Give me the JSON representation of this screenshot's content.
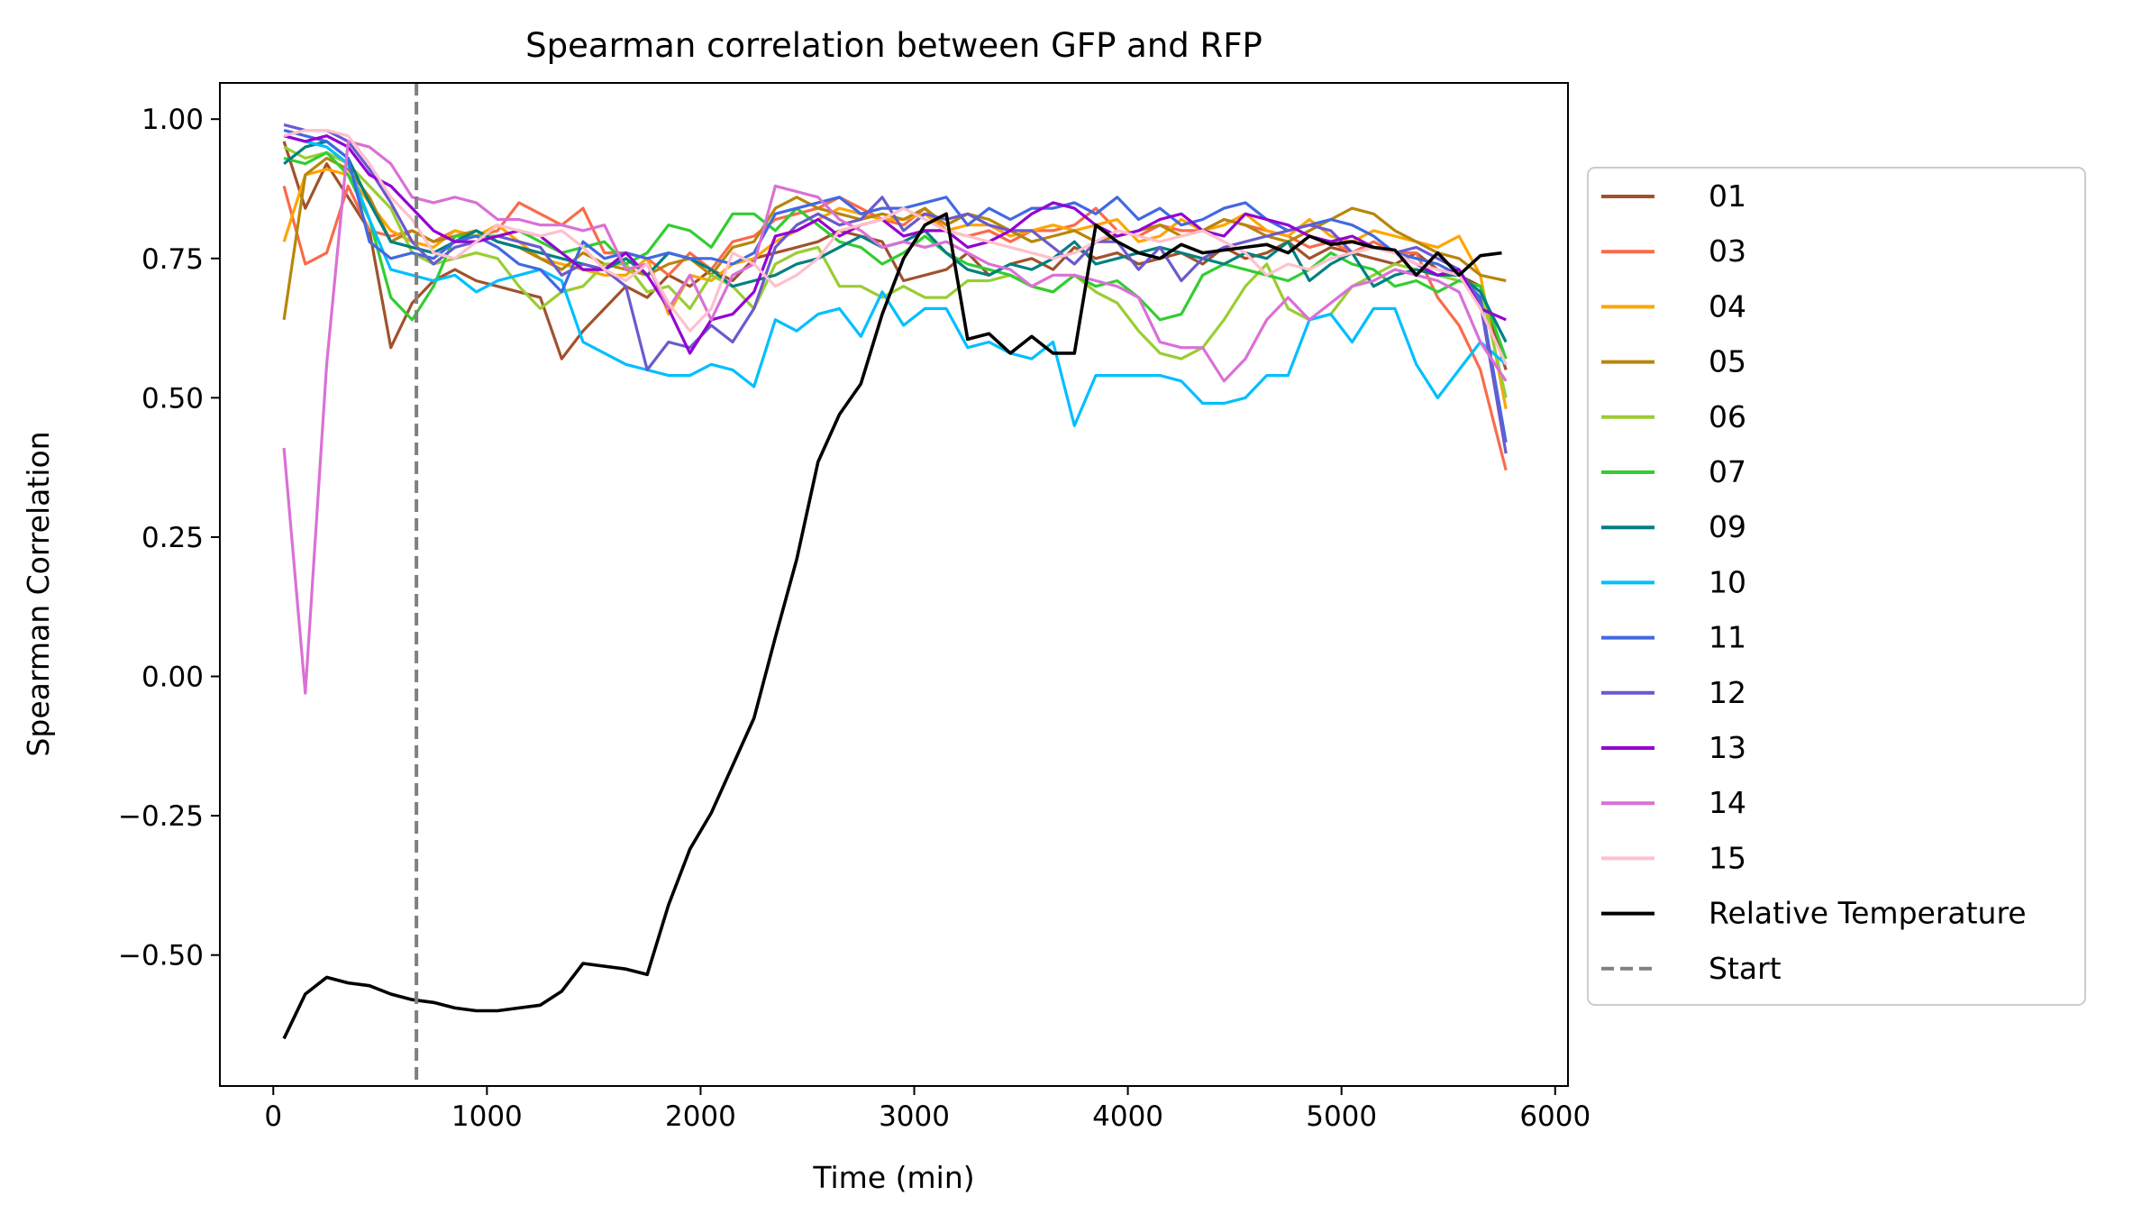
{
  "chart_data": {
    "type": "line",
    "title": "Spearman correlation between GFP and RFP",
    "xlabel": "Time (min)",
    "ylabel": "Spearman Correlation",
    "xlim": [
      -250,
      6060
    ],
    "ylim": [
      -0.735,
      1.065
    ],
    "xticks": [
      0,
      1000,
      2000,
      3000,
      4000,
      5000,
      6000
    ],
    "xtick_labels": [
      "0",
      "1000",
      "2000",
      "3000",
      "4000",
      "5000",
      "6000"
    ],
    "yticks": [
      -0.5,
      -0.25,
      0.0,
      0.25,
      0.5,
      0.75,
      1.0
    ],
    "ytick_labels": [
      "−0.50",
      "−0.25",
      "0.00",
      "0.25",
      "0.50",
      "0.75",
      "1.00"
    ],
    "grid": false,
    "legend_position": "outside-right",
    "x": [
      50,
      150,
      250,
      350,
      450,
      550,
      650,
      750,
      850,
      950,
      1050,
      1150,
      1250,
      1350,
      1450,
      1550,
      1650,
      1750,
      1850,
      1950,
      2050,
      2150,
      2250,
      2350,
      2450,
      2550,
      2650,
      2750,
      2850,
      2950,
      3050,
      3150,
      3250,
      3350,
      3450,
      3550,
      3650,
      3750,
      3850,
      3950,
      4050,
      4150,
      4250,
      4350,
      4450,
      4550,
      4650,
      4750,
      4850,
      4950,
      5050,
      5150,
      5250,
      5350,
      5450,
      5550,
      5650,
      5770
    ],
    "series": [
      {
        "name": "01",
        "color": "#a0522d",
        "values": [
          0.96,
          0.84,
          0.92,
          0.86,
          0.8,
          0.59,
          0.67,
          0.71,
          0.73,
          0.71,
          0.7,
          0.69,
          0.68,
          0.57,
          0.62,
          0.66,
          0.7,
          0.68,
          0.72,
          0.7,
          0.73,
          0.71,
          0.75,
          0.76,
          0.77,
          0.78,
          0.8,
          0.79,
          0.78,
          0.71,
          0.72,
          0.73,
          0.76,
          0.72,
          0.74,
          0.75,
          0.73,
          0.77,
          0.75,
          0.76,
          0.74,
          0.75,
          0.76,
          0.74,
          0.77,
          0.75,
          0.76,
          0.78,
          0.75,
          0.77,
          0.76,
          0.75,
          0.74,
          0.76,
          0.73,
          0.72,
          0.7,
          0.55
        ]
      },
      {
        "name": "03",
        "color": "#fa6b4a",
        "values": [
          0.88,
          0.74,
          0.76,
          0.88,
          0.8,
          0.79,
          0.8,
          0.78,
          0.8,
          0.79,
          0.8,
          0.85,
          0.83,
          0.81,
          0.84,
          0.76,
          0.76,
          0.75,
          0.72,
          0.76,
          0.73,
          0.78,
          0.79,
          0.82,
          0.83,
          0.84,
          0.86,
          0.84,
          0.82,
          0.81,
          0.84,
          0.8,
          0.79,
          0.8,
          0.78,
          0.8,
          0.8,
          0.81,
          0.84,
          0.8,
          0.79,
          0.81,
          0.8,
          0.8,
          0.82,
          0.81,
          0.8,
          0.79,
          0.77,
          0.78,
          0.76,
          0.78,
          0.76,
          0.76,
          0.68,
          0.63,
          0.55,
          0.37
        ]
      },
      {
        "name": "04",
        "color": "#ffa500",
        "values": [
          0.78,
          0.9,
          0.91,
          0.9,
          0.85,
          0.8,
          0.78,
          0.77,
          0.8,
          0.79,
          0.81,
          0.78,
          0.75,
          0.74,
          0.73,
          0.72,
          0.72,
          0.75,
          0.65,
          0.72,
          0.71,
          0.74,
          0.75,
          0.78,
          0.8,
          0.82,
          0.84,
          0.83,
          0.82,
          0.82,
          0.83,
          0.8,
          0.81,
          0.81,
          0.79,
          0.8,
          0.81,
          0.8,
          0.81,
          0.82,
          0.78,
          0.79,
          0.82,
          0.8,
          0.81,
          0.83,
          0.8,
          0.79,
          0.82,
          0.79,
          0.78,
          0.8,
          0.79,
          0.78,
          0.77,
          0.79,
          0.72,
          0.48
        ]
      },
      {
        "name": "05",
        "color": "#b8860b",
        "values": [
          0.64,
          0.9,
          0.93,
          0.91,
          0.86,
          0.78,
          0.8,
          0.78,
          0.79,
          0.8,
          0.78,
          0.77,
          0.75,
          0.73,
          0.76,
          0.74,
          0.73,
          0.72,
          0.74,
          0.75,
          0.72,
          0.77,
          0.78,
          0.84,
          0.86,
          0.84,
          0.83,
          0.82,
          0.83,
          0.82,
          0.84,
          0.81,
          0.83,
          0.82,
          0.8,
          0.78,
          0.79,
          0.8,
          0.78,
          0.79,
          0.8,
          0.81,
          0.79,
          0.8,
          0.82,
          0.81,
          0.79,
          0.78,
          0.8,
          0.82,
          0.84,
          0.83,
          0.8,
          0.78,
          0.76,
          0.75,
          0.72,
          0.71
        ]
      },
      {
        "name": "06",
        "color": "#9acd32",
        "values": [
          0.95,
          0.93,
          0.94,
          0.92,
          0.88,
          0.84,
          0.76,
          0.74,
          0.75,
          0.76,
          0.75,
          0.7,
          0.66,
          0.69,
          0.7,
          0.74,
          0.74,
          0.69,
          0.7,
          0.66,
          0.72,
          0.7,
          0.66,
          0.74,
          0.76,
          0.77,
          0.7,
          0.7,
          0.68,
          0.7,
          0.68,
          0.68,
          0.71,
          0.71,
          0.72,
          0.7,
          0.69,
          0.72,
          0.69,
          0.67,
          0.62,
          0.58,
          0.57,
          0.59,
          0.64,
          0.7,
          0.74,
          0.66,
          0.64,
          0.65,
          0.7,
          0.72,
          0.74,
          0.73,
          0.72,
          0.71,
          0.7,
          0.5
        ]
      },
      {
        "name": "07",
        "color": "#32cd32",
        "values": [
          0.93,
          0.92,
          0.94,
          0.9,
          0.82,
          0.68,
          0.64,
          0.7,
          0.79,
          0.79,
          0.79,
          0.8,
          0.78,
          0.76,
          0.77,
          0.78,
          0.74,
          0.76,
          0.81,
          0.8,
          0.77,
          0.83,
          0.83,
          0.8,
          0.84,
          0.81,
          0.78,
          0.77,
          0.74,
          0.76,
          0.79,
          0.76,
          0.74,
          0.73,
          0.72,
          0.7,
          0.69,
          0.72,
          0.7,
          0.71,
          0.68,
          0.64,
          0.65,
          0.72,
          0.74,
          0.73,
          0.72,
          0.71,
          0.73,
          0.76,
          0.74,
          0.73,
          0.7,
          0.71,
          0.69,
          0.71,
          0.7,
          0.57
        ]
      },
      {
        "name": "09",
        "color": "#008080",
        "values": [
          0.92,
          0.95,
          0.96,
          0.93,
          0.85,
          0.78,
          0.77,
          0.76,
          0.78,
          0.8,
          0.78,
          0.77,
          0.76,
          0.75,
          0.74,
          0.73,
          0.75,
          0.72,
          0.76,
          0.75,
          0.73,
          0.7,
          0.71,
          0.72,
          0.74,
          0.75,
          0.77,
          0.79,
          0.77,
          0.78,
          0.8,
          0.76,
          0.73,
          0.72,
          0.74,
          0.73,
          0.75,
          0.78,
          0.74,
          0.75,
          0.76,
          0.77,
          0.76,
          0.75,
          0.74,
          0.76,
          0.75,
          0.78,
          0.71,
          0.74,
          0.76,
          0.7,
          0.72,
          0.73,
          0.72,
          0.72,
          0.69,
          0.6
        ]
      },
      {
        "name": "10",
        "color": "#00bfff",
        "values": [
          0.97,
          0.96,
          0.95,
          0.92,
          0.82,
          0.73,
          0.72,
          0.71,
          0.72,
          0.69,
          0.71,
          0.72,
          0.73,
          0.71,
          0.6,
          0.58,
          0.56,
          0.55,
          0.54,
          0.54,
          0.56,
          0.55,
          0.52,
          0.64,
          0.62,
          0.65,
          0.66,
          0.61,
          0.69,
          0.63,
          0.66,
          0.66,
          0.59,
          0.6,
          0.58,
          0.57,
          0.6,
          0.45,
          0.54,
          0.54,
          0.54,
          0.54,
          0.53,
          0.49,
          0.49,
          0.5,
          0.54,
          0.54,
          0.64,
          0.65,
          0.6,
          0.66,
          0.66,
          0.56,
          0.5,
          0.55,
          0.6,
          0.56
        ]
      },
      {
        "name": "11",
        "color": "#4169e1",
        "values": [
          0.98,
          0.97,
          0.96,
          0.93,
          0.78,
          0.75,
          0.76,
          0.75,
          0.78,
          0.79,
          0.77,
          0.74,
          0.73,
          0.69,
          0.78,
          0.75,
          0.76,
          0.75,
          0.76,
          0.75,
          0.75,
          0.74,
          0.76,
          0.83,
          0.84,
          0.85,
          0.86,
          0.83,
          0.84,
          0.84,
          0.85,
          0.86,
          0.81,
          0.84,
          0.82,
          0.84,
          0.84,
          0.85,
          0.83,
          0.86,
          0.82,
          0.84,
          0.81,
          0.82,
          0.84,
          0.85,
          0.82,
          0.8,
          0.81,
          0.82,
          0.81,
          0.79,
          0.76,
          0.75,
          0.74,
          0.72,
          0.68,
          0.42
        ]
      },
      {
        "name": "12",
        "color": "#6a5acd",
        "values": [
          0.99,
          0.98,
          0.98,
          0.96,
          0.91,
          0.85,
          0.78,
          0.74,
          0.77,
          0.78,
          0.79,
          0.78,
          0.77,
          0.72,
          0.74,
          0.73,
          0.7,
          0.55,
          0.6,
          0.59,
          0.63,
          0.6,
          0.66,
          0.77,
          0.81,
          0.83,
          0.81,
          0.82,
          0.86,
          0.8,
          0.83,
          0.82,
          0.83,
          0.81,
          0.8,
          0.8,
          0.77,
          0.74,
          0.78,
          0.78,
          0.73,
          0.77,
          0.71,
          0.75,
          0.77,
          0.78,
          0.79,
          0.8,
          0.81,
          0.8,
          0.76,
          0.77,
          0.76,
          0.77,
          0.75,
          0.73,
          0.67,
          0.4
        ]
      },
      {
        "name": "13",
        "color": "#9400d3",
        "values": [
          0.97,
          0.96,
          0.97,
          0.95,
          0.9,
          0.88,
          0.84,
          0.8,
          0.78,
          0.78,
          0.79,
          0.8,
          0.79,
          0.76,
          0.73,
          0.73,
          0.76,
          0.72,
          0.66,
          0.58,
          0.64,
          0.65,
          0.69,
          0.79,
          0.8,
          0.82,
          0.79,
          0.81,
          0.82,
          0.79,
          0.8,
          0.8,
          0.77,
          0.78,
          0.8,
          0.83,
          0.85,
          0.84,
          0.81,
          0.79,
          0.8,
          0.82,
          0.83,
          0.8,
          0.79,
          0.83,
          0.82,
          0.81,
          0.79,
          0.78,
          0.79,
          0.77,
          0.76,
          0.74,
          0.72,
          0.73,
          0.66,
          0.64
        ]
      },
      {
        "name": "14",
        "color": "#da70d6",
        "values": [
          0.41,
          -0.03,
          0.56,
          0.96,
          0.95,
          0.92,
          0.86,
          0.85,
          0.86,
          0.85,
          0.82,
          0.82,
          0.81,
          0.81,
          0.8,
          0.81,
          0.73,
          0.74,
          0.66,
          0.72,
          0.64,
          0.72,
          0.74,
          0.88,
          0.87,
          0.86,
          0.82,
          0.8,
          0.77,
          0.78,
          0.77,
          0.78,
          0.76,
          0.74,
          0.73,
          0.7,
          0.72,
          0.72,
          0.71,
          0.7,
          0.68,
          0.6,
          0.59,
          0.59,
          0.53,
          0.57,
          0.64,
          0.68,
          0.64,
          0.67,
          0.7,
          0.71,
          0.73,
          0.72,
          0.71,
          0.69,
          0.6,
          0.53
        ]
      },
      {
        "name": "15",
        "color": "#ffc0cb",
        "values": [
          0.97,
          0.98,
          0.98,
          0.97,
          0.92,
          0.86,
          0.82,
          0.76,
          0.75,
          0.78,
          0.81,
          0.8,
          0.79,
          0.8,
          0.77,
          0.73,
          0.71,
          0.74,
          0.67,
          0.62,
          0.66,
          0.76,
          0.74,
          0.7,
          0.72,
          0.75,
          0.8,
          0.81,
          0.82,
          0.84,
          0.82,
          0.8,
          0.79,
          0.78,
          0.77,
          0.76,
          0.75,
          0.76,
          0.78,
          0.8,
          0.79,
          0.78,
          0.79,
          0.8,
          0.78,
          0.76,
          0.72,
          0.74,
          0.73,
          0.75,
          0.76,
          0.77,
          0.76,
          0.74,
          0.73,
          0.72,
          0.66,
          0.56
        ]
      },
      {
        "name": "Relative Temperature",
        "color": "#000000",
        "values": [
          -0.65,
          -0.57,
          -0.54,
          -0.55,
          -0.555,
          -0.57,
          -0.58,
          -0.585,
          -0.595,
          -0.6,
          -0.6,
          -0.595,
          -0.59,
          -0.565,
          -0.515,
          -0.52,
          -0.525,
          -0.535,
          -0.41,
          -0.31,
          -0.245,
          -0.16,
          -0.075,
          0.07,
          0.21,
          0.385,
          0.47,
          0.525,
          0.65,
          0.75,
          0.81,
          0.83,
          0.605,
          0.615,
          0.58,
          0.61,
          0.58,
          0.58,
          0.81,
          0.78,
          0.76,
          0.75,
          0.775,
          0.76,
          0.765,
          0.77,
          0.775,
          0.76,
          0.79,
          0.775,
          0.78,
          0.77,
          0.765,
          0.72,
          0.76,
          0.72,
          0.755,
          0.76
        ]
      }
    ],
    "x_temp": [
      50,
      150,
      250,
      350,
      450,
      550,
      650,
      750,
      850,
      950,
      1050,
      1150,
      1250,
      1350,
      1450,
      1550,
      1650,
      1750,
      1850,
      1950,
      2050,
      2150,
      2250,
      2350,
      2450,
      2550,
      2650,
      2750,
      2850,
      2950,
      3050,
      3150,
      3250,
      3350,
      3450,
      3550,
      3650,
      3750,
      3850,
      3950,
      4050,
      4150,
      4250,
      4350,
      4450,
      4550,
      4650,
      4750,
      4850,
      4950,
      5050,
      5150,
      5250,
      5350,
      5450,
      5550,
      5650,
      5750
    ],
    "vline": {
      "name": "Start",
      "x": 670,
      "color": "#808080"
    }
  }
}
